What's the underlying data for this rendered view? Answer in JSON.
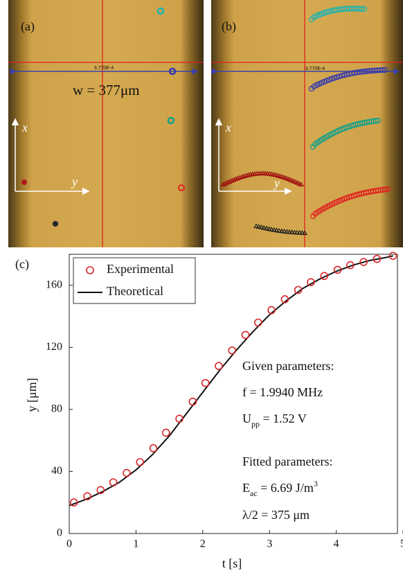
{
  "photos": {
    "a": {
      "label": "(a)",
      "scale_text": "3.770E-4",
      "width_label": "w = 377μm",
      "x_axis": "x",
      "y_axis": "y"
    },
    "b": {
      "label": "(b)",
      "scale_text": "3.770E-4",
      "x_axis": "x",
      "y_axis": "y"
    }
  },
  "chart_data": {
    "type": "line",
    "panel_label": "(c)",
    "x_label": "t [s]",
    "y_label": "y [μm]",
    "xlim": [
      0,
      5
    ],
    "ylim": [
      0,
      180
    ],
    "xticks": [
      0,
      1,
      2,
      3,
      4,
      5
    ],
    "yticks": [
      0,
      40,
      80,
      120,
      160
    ],
    "legend": "top-left",
    "series": [
      {
        "name": "Experimental",
        "color": "#d8262a",
        "marker": "circle",
        "x": [
          0.07,
          0.27,
          0.47,
          0.66,
          0.86,
          1.06,
          1.26,
          1.45,
          1.65,
          1.85,
          2.04,
          2.24,
          2.44,
          2.64,
          2.83,
          3.03,
          3.23,
          3.43,
          3.62,
          3.82,
          4.02,
          4.21,
          4.41,
          4.61,
          4.85
        ],
        "values": [
          20,
          24,
          28,
          33,
          39,
          46,
          55,
          65,
          74,
          85,
          97,
          108,
          118,
          128,
          136,
          144,
          151,
          157,
          162,
          166,
          170,
          173,
          175,
          177,
          179
        ]
      },
      {
        "name": "Theoretical",
        "color": "#111111",
        "marker": "none",
        "x": [
          0,
          0.25,
          0.5,
          0.75,
          1,
          1.25,
          1.5,
          1.75,
          2,
          2.25,
          2.5,
          2.75,
          3,
          3.25,
          3.5,
          3.75,
          4,
          4.25,
          4.5,
          4.75,
          4.85
        ],
        "values": [
          18,
          22,
          27,
          33,
          41,
          51,
          63,
          77,
          91,
          105,
          118,
          130,
          141,
          150,
          158,
          164,
          169,
          173,
          176,
          178,
          179
        ]
      }
    ],
    "annotations": [
      {
        "text": "Given parameters:"
      },
      {
        "text": "f = 1.9940 MHz"
      },
      {
        "text": "U",
        "sub": "pp",
        "rest": " = 1.52 V"
      },
      {
        "text": "Fitted parameters:"
      },
      {
        "text": "E",
        "sub": "ac",
        "rest": " = 6.69 J/m",
        "sup": "3"
      },
      {
        "text": "λ/2 = 375 μm"
      }
    ]
  }
}
